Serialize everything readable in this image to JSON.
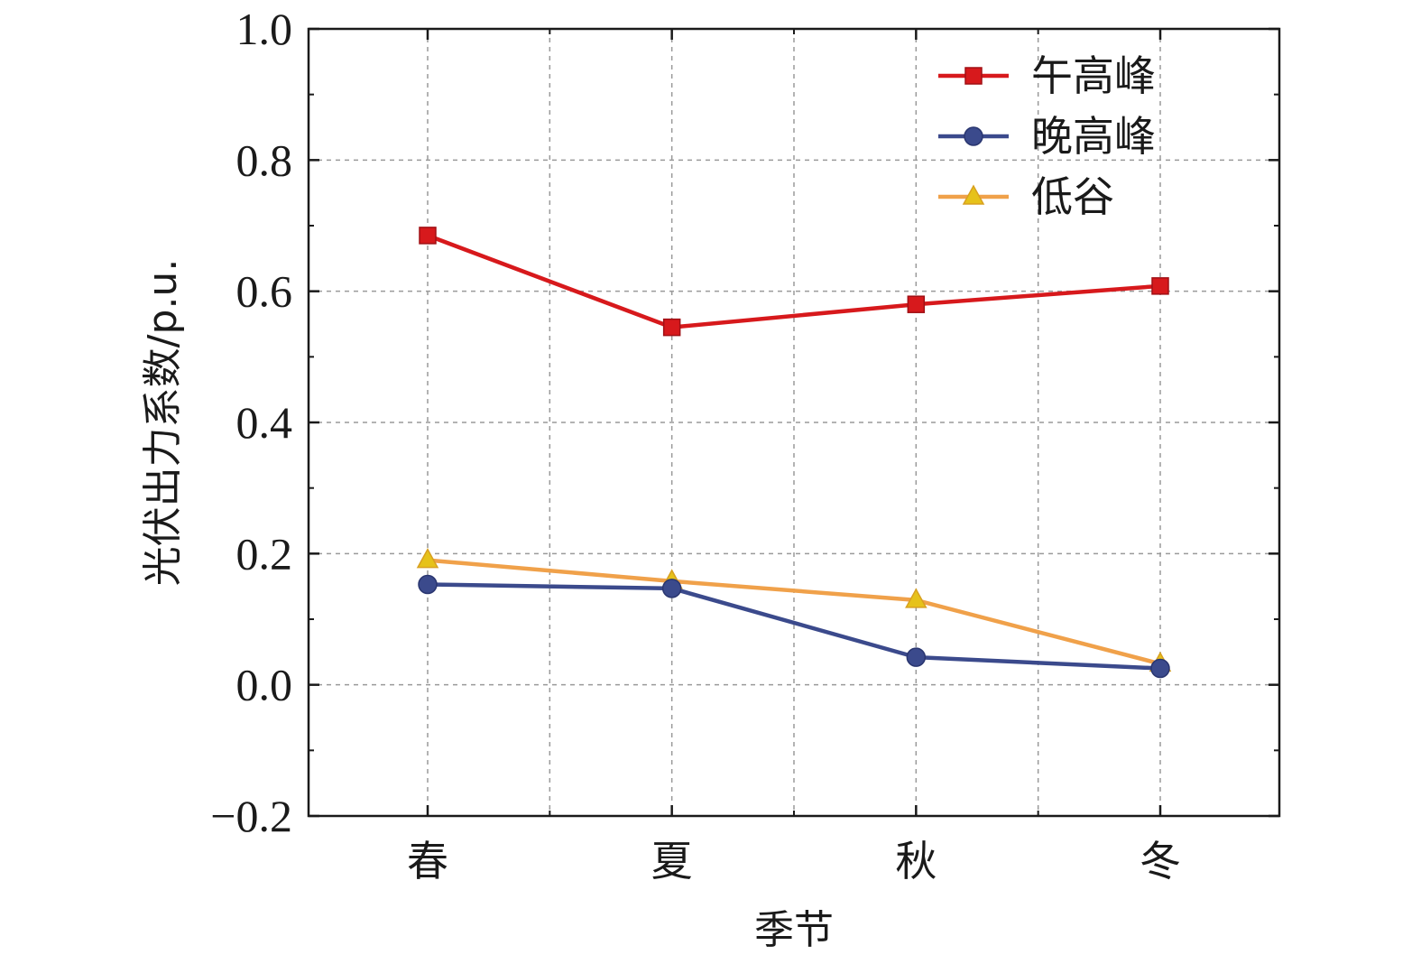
{
  "chart_data": {
    "type": "line",
    "categories": [
      "春",
      "夏",
      "秋",
      "冬"
    ],
    "series": [
      {
        "name": "午高峰",
        "values": [
          0.685,
          0.545,
          0.58,
          0.608
        ],
        "color": "#d7191c",
        "marker": "square"
      },
      {
        "name": "晚高峰",
        "values": [
          0.153,
          0.147,
          0.042,
          0.025
        ],
        "color": "#3b4a8c",
        "marker": "circle"
      },
      {
        "name": "低谷",
        "values": [
          0.19,
          0.158,
          0.129,
          0.032
        ],
        "color": "#f0a14a",
        "marker": "triangle"
      }
    ],
    "title": "",
    "xlabel": "季节",
    "ylabel": "光伏出力系数/p.u.",
    "ylim": [
      -0.2,
      1.0
    ],
    "yticks": [
      -0.2,
      0.0,
      0.2,
      0.4,
      0.6,
      0.8,
      1.0
    ],
    "ytick_labels": [
      "−0.2",
      "0.0",
      "0.2",
      "0.4",
      "0.6",
      "0.8",
      "1.0"
    ],
    "grid": true,
    "legend_position": "top-right"
  }
}
